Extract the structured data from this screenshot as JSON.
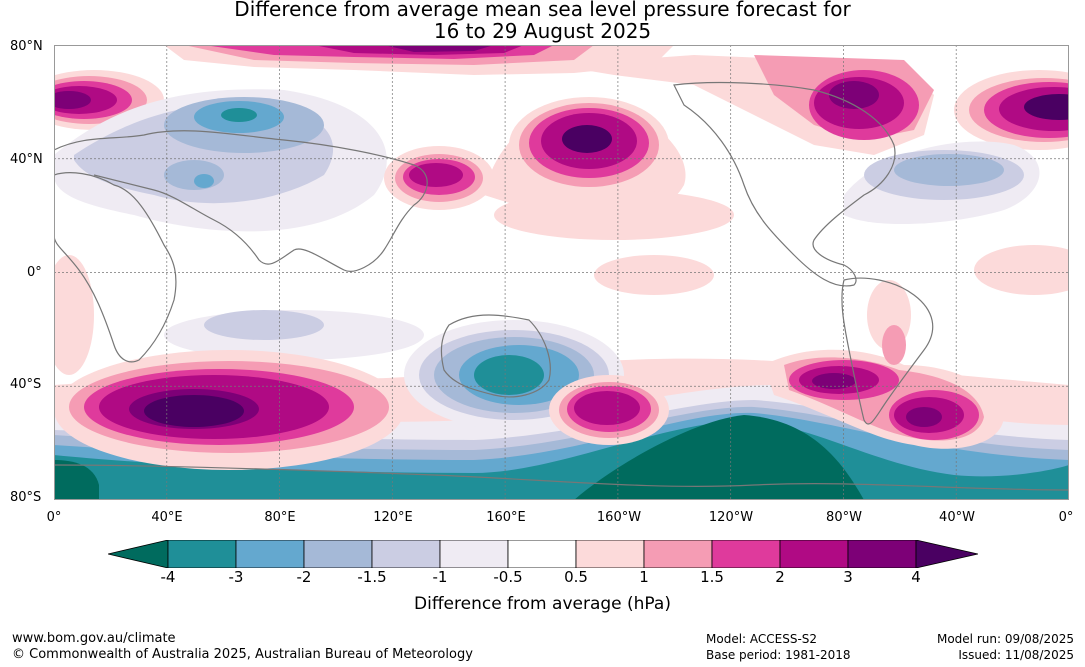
{
  "title_line1": "Difference from average mean sea level pressure forecast for",
  "title_line2": "16 to 29 August 2025",
  "lat_labels": [
    "80°N",
    "40°N",
    "0°",
    "40°S",
    "80°S"
  ],
  "lon_labels": [
    "0°",
    "40°E",
    "80°E",
    "120°E",
    "160°E",
    "160°W",
    "120°W",
    "80°W",
    "40°W",
    "0°"
  ],
  "colorbar": {
    "ticks": [
      "-4",
      "-3",
      "-2",
      "-1.5",
      "-1",
      "-0.5",
      "0.5",
      "1",
      "1.5",
      "2",
      "3",
      "4"
    ],
    "colors": [
      "#006b5e",
      "#1f8f98",
      "#64a8cf",
      "#a5b9d7",
      "#cbcde3",
      "#efebf3",
      "#ffffff",
      "#fcdada",
      "#f59cb4",
      "#df3a9c",
      "#b00a84",
      "#7d0077",
      "#4a0062"
    ],
    "label": "Difference from average (hPa)"
  },
  "footer": {
    "website": "www.bom.gov.au/climate",
    "copyright": "© Commonwealth of Australia 2025, Australian Bureau of Meteorology",
    "model": "Model: ACCESS-S2",
    "base_period": "Base period: 1981-2018",
    "model_run": "Model run: 09/08/2025",
    "issued": "Issued: 11/08/2025"
  }
}
